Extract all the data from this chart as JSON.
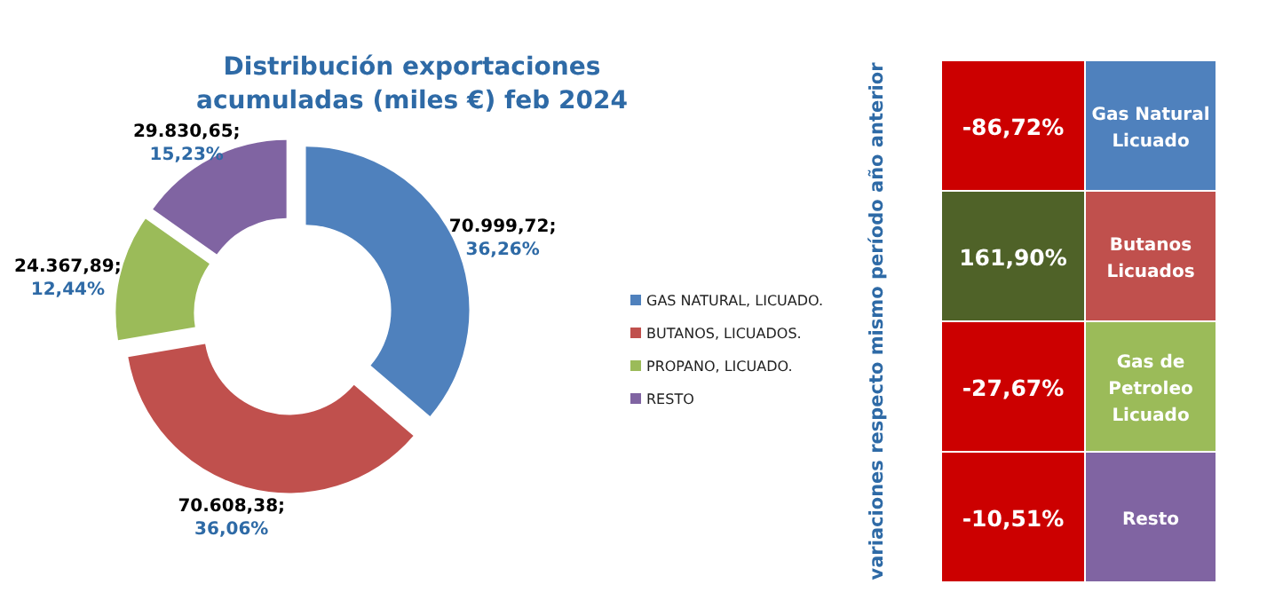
{
  "chart_data": [
    {
      "type": "donut",
      "title": "Distribución exportaciones acumuladas (miles €) feb 2024",
      "categories": [
        "GAS NATURAL, LICUADO.",
        "BUTANOS, LICUADOS.",
        "PROPANO, LICUADO.",
        "RESTO"
      ],
      "values": [
        70999.72,
        70608.38,
        24367.89,
        29830.65
      ],
      "colors": [
        "#4f81bd",
        "#c0504d",
        "#9bbb59",
        "#8064a2"
      ],
      "value_labels": [
        "70.999,72; 36,26%",
        "70.608,38; 36,06%",
        "24.367,89; 12,44%",
        "29.830,65; 15,23%"
      ],
      "legend": "right"
    },
    {
      "type": "other",
      "ylabel": "variaciones respecto mismo período año anterior",
      "categories": [
        "Gas Natural Licuado",
        "Butanos Licuados",
        "Gas de Petroleo Licuado",
        "Resto"
      ],
      "colors": [
        "#4f81bd",
        "#c0504d",
        "#9bbb59",
        "#8064a2"
      ],
      "series": [
        {
          "values": [
            -86.72,
            161.9,
            -27.67,
            -10.51
          ],
          "value_labels": [
            "-86,72%",
            "161,90%",
            "-27,67%",
            "-10,51%"
          ],
          "colors": [
            "#cc0000",
            "#4f6228",
            "#cc0000",
            "#cc0000"
          ]
        }
      ]
    }
  ]
}
